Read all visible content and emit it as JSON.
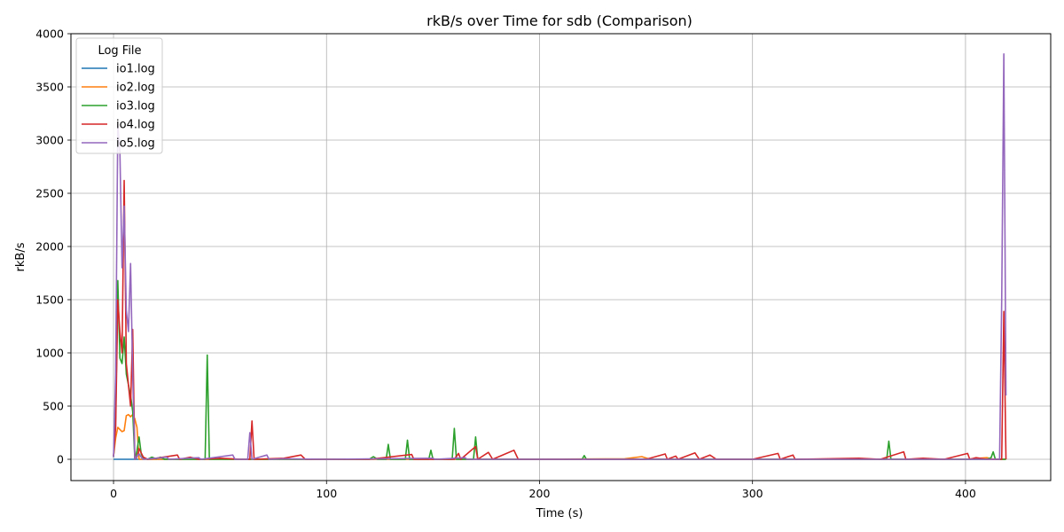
{
  "chart_data": {
    "type": "line",
    "title": "rkB/s over Time for sdb (Comparison)",
    "xlabel": "Time (s)",
    "ylabel": "rkB/s",
    "xlim": [
      -20,
      440
    ],
    "ylim": [
      -200,
      4000
    ],
    "x_ticks": [
      0,
      100,
      200,
      300,
      400
    ],
    "y_ticks": [
      0,
      500,
      1000,
      1500,
      2000,
      2500,
      3000,
      3500,
      4000
    ],
    "grid": true,
    "legend": {
      "title": "Log File",
      "placement": "top-left"
    },
    "series": [
      {
        "name": "io1.log",
        "color": "#1f77b4",
        "points": [
          [
            0,
            0
          ],
          [
            2,
            0
          ],
          [
            4,
            0
          ],
          [
            6,
            0
          ],
          [
            8,
            0
          ],
          [
            10,
            0
          ],
          [
            12,
            0
          ],
          [
            14,
            0
          ],
          [
            16,
            0
          ],
          [
            18,
            0
          ],
          [
            20,
            0
          ],
          [
            40,
            0
          ],
          [
            60,
            0
          ],
          [
            80,
            0
          ],
          [
            100,
            0
          ],
          [
            150,
            0
          ],
          [
            200,
            0
          ],
          [
            250,
            0
          ],
          [
            300,
            0
          ],
          [
            350,
            0
          ],
          [
            400,
            0
          ],
          [
            419,
            0
          ]
        ]
      },
      {
        "name": "io2.log",
        "color": "#ff7f0e",
        "points": [
          [
            0,
            30
          ],
          [
            1,
            200
          ],
          [
            2,
            300
          ],
          [
            3,
            280
          ],
          [
            4,
            260
          ],
          [
            5,
            270
          ],
          [
            6,
            410
          ],
          [
            7,
            420
          ],
          [
            8,
            400
          ],
          [
            9,
            420
          ],
          [
            10,
            380
          ],
          [
            11,
            300
          ],
          [
            12,
            0
          ],
          [
            14,
            0
          ],
          [
            20,
            0
          ],
          [
            50,
            0
          ],
          [
            100,
            0
          ],
          [
            150,
            0
          ],
          [
            200,
            0
          ],
          [
            240,
            5
          ],
          [
            248,
            25
          ],
          [
            252,
            0
          ],
          [
            300,
            0
          ],
          [
            350,
            0
          ],
          [
            400,
            0
          ],
          [
            410,
            15
          ],
          [
            413,
            0
          ],
          [
            419,
            0
          ]
        ]
      },
      {
        "name": "io3.log",
        "color": "#2ca02c",
        "points": [
          [
            0,
            20
          ],
          [
            1,
            400
          ],
          [
            2,
            1680
          ],
          [
            3,
            950
          ],
          [
            4,
            900
          ],
          [
            5,
            1150
          ],
          [
            6,
            800
          ],
          [
            7,
            700
          ],
          [
            8,
            600
          ],
          [
            9,
            450
          ],
          [
            10,
            0
          ],
          [
            11,
            80
          ],
          [
            12,
            210
          ],
          [
            13,
            50
          ],
          [
            14,
            10
          ],
          [
            16,
            0
          ],
          [
            18,
            20
          ],
          [
            20,
            5
          ],
          [
            22,
            20
          ],
          [
            24,
            0
          ],
          [
            30,
            0
          ],
          [
            43,
            0
          ],
          [
            44,
            980
          ],
          [
            45,
            0
          ],
          [
            50,
            0
          ],
          [
            60,
            0
          ],
          [
            70,
            0
          ],
          [
            80,
            0
          ],
          [
            100,
            0
          ],
          [
            120,
            0
          ],
          [
            122,
            25
          ],
          [
            124,
            0
          ],
          [
            128,
            0
          ],
          [
            129,
            140
          ],
          [
            130,
            0
          ],
          [
            137,
            0
          ],
          [
            138,
            180
          ],
          [
            139,
            0
          ],
          [
            148,
            0
          ],
          [
            149,
            85
          ],
          [
            150,
            0
          ],
          [
            159,
            0
          ],
          [
            160,
            290
          ],
          [
            161,
            0
          ],
          [
            169,
            0
          ],
          [
            170,
            210
          ],
          [
            171,
            0
          ],
          [
            200,
            0
          ],
          [
            220,
            0
          ],
          [
            221,
            35
          ],
          [
            222,
            0
          ],
          [
            250,
            0
          ],
          [
            300,
            0
          ],
          [
            350,
            0
          ],
          [
            363,
            0
          ],
          [
            364,
            170
          ],
          [
            365,
            0
          ],
          [
            380,
            0
          ],
          [
            400,
            0
          ],
          [
            410,
            0
          ],
          [
            412,
            15
          ],
          [
            413,
            70
          ],
          [
            414,
            0
          ],
          [
            419,
            0
          ]
        ]
      },
      {
        "name": "io4.log",
        "color": "#d62728",
        "points": [
          [
            0,
            30
          ],
          [
            1,
            300
          ],
          [
            2,
            1500
          ],
          [
            3,
            1200
          ],
          [
            4,
            1000
          ],
          [
            5,
            2620
          ],
          [
            6,
            900
          ],
          [
            7,
            700
          ],
          [
            8,
            500
          ],
          [
            9,
            1220
          ],
          [
            10,
            0
          ],
          [
            11,
            20
          ],
          [
            12,
            100
          ],
          [
            13,
            60
          ],
          [
            14,
            20
          ],
          [
            16,
            0
          ],
          [
            20,
            10
          ],
          [
            30,
            40
          ],
          [
            31,
            0
          ],
          [
            36,
            20
          ],
          [
            40,
            0
          ],
          [
            50,
            10
          ],
          [
            60,
            0
          ],
          [
            64,
            0
          ],
          [
            65,
            360
          ],
          [
            66,
            0
          ],
          [
            80,
            10
          ],
          [
            88,
            40
          ],
          [
            90,
            0
          ],
          [
            100,
            0
          ],
          [
            120,
            0
          ],
          [
            140,
            45
          ],
          [
            141,
            0
          ],
          [
            160,
            0
          ],
          [
            162,
            55
          ],
          [
            163,
            0
          ],
          [
            170,
            120
          ],
          [
            171,
            0
          ],
          [
            176,
            65
          ],
          [
            178,
            0
          ],
          [
            188,
            85
          ],
          [
            190,
            0
          ],
          [
            200,
            0
          ],
          [
            250,
            0
          ],
          [
            259,
            50
          ],
          [
            260,
            0
          ],
          [
            264,
            30
          ],
          [
            265,
            0
          ],
          [
            273,
            60
          ],
          [
            275,
            0
          ],
          [
            280,
            40
          ],
          [
            283,
            0
          ],
          [
            300,
            0
          ],
          [
            312,
            55
          ],
          [
            313,
            0
          ],
          [
            319,
            40
          ],
          [
            320,
            0
          ],
          [
            350,
            10
          ],
          [
            360,
            0
          ],
          [
            371,
            70
          ],
          [
            372,
            0
          ],
          [
            380,
            10
          ],
          [
            390,
            0
          ],
          [
            401,
            55
          ],
          [
            402,
            0
          ],
          [
            405,
            15
          ],
          [
            410,
            0
          ],
          [
            417,
            0
          ],
          [
            418,
            1390
          ],
          [
            419,
            0
          ]
        ]
      },
      {
        "name": "io5.log",
        "color": "#9467bd",
        "points": [
          [
            0,
            20
          ],
          [
            1,
            800
          ],
          [
            2,
            3150
          ],
          [
            3,
            2880
          ],
          [
            4,
            1800
          ],
          [
            5,
            2380
          ],
          [
            6,
            1400
          ],
          [
            7,
            1200
          ],
          [
            8,
            1840
          ],
          [
            9,
            800
          ],
          [
            10,
            0
          ],
          [
            11,
            30
          ],
          [
            12,
            50
          ],
          [
            13,
            20
          ],
          [
            14,
            0
          ],
          [
            20,
            10
          ],
          [
            25,
            20
          ],
          [
            26,
            0
          ],
          [
            40,
            15
          ],
          [
            41,
            0
          ],
          [
            56,
            40
          ],
          [
            57,
            0
          ],
          [
            63,
            0
          ],
          [
            64,
            250
          ],
          [
            65,
            0
          ],
          [
            72,
            40
          ],
          [
            73,
            0
          ],
          [
            80,
            5
          ],
          [
            100,
            0
          ],
          [
            150,
            10
          ],
          [
            151,
            0
          ],
          [
            165,
            15
          ],
          [
            166,
            0
          ],
          [
            200,
            0
          ],
          [
            250,
            0
          ],
          [
            300,
            0
          ],
          [
            350,
            0
          ],
          [
            400,
            0
          ],
          [
            416,
            0
          ],
          [
            417,
            1500
          ],
          [
            418,
            3810
          ],
          [
            419,
            600
          ]
        ]
      }
    ]
  }
}
